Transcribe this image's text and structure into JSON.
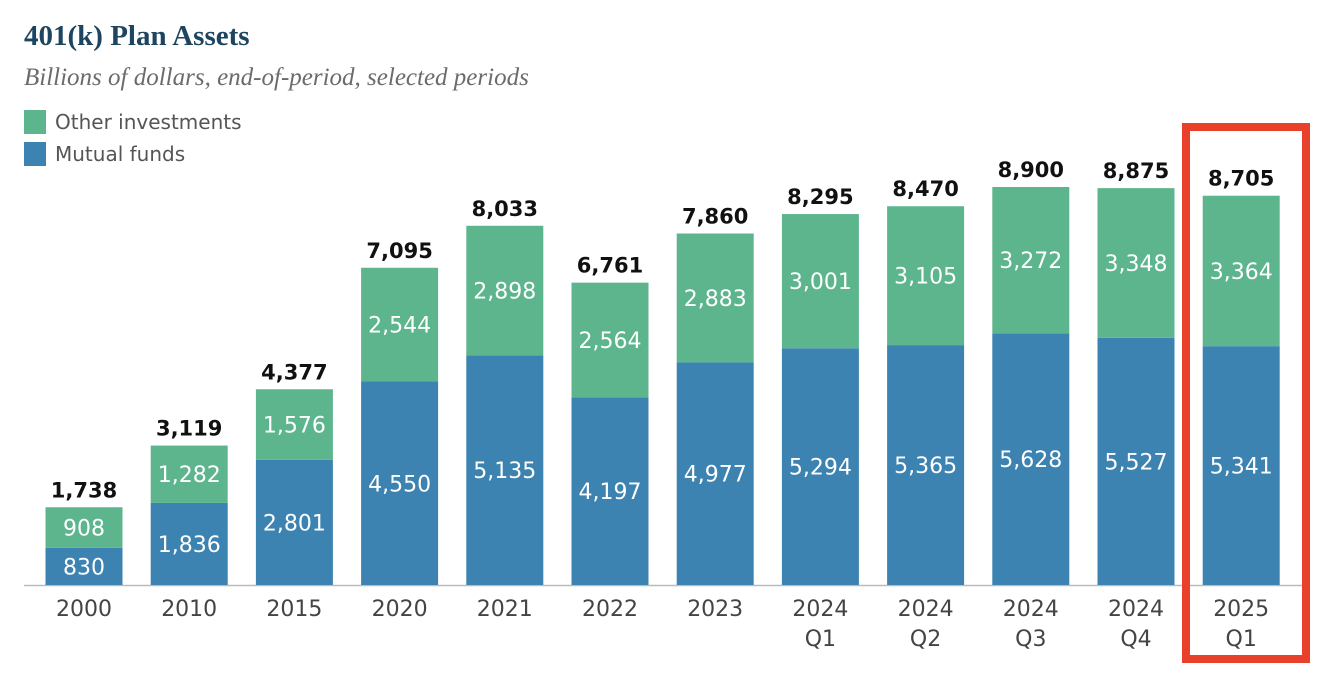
{
  "chart_data": {
    "type": "bar",
    "stacked": true,
    "title": "401(k) Plan Assets",
    "subtitle": "Billions of dollars, end-of-period, selected periods",
    "xlabel": "",
    "ylabel": "",
    "ylim": [
      0,
      9000
    ],
    "grid": false,
    "legend_position": "top-left",
    "categories": [
      "2000",
      "2010",
      "2015",
      "2020",
      "2021",
      "2022",
      "2023",
      "2024 Q1",
      "2024 Q2",
      "2024 Q3",
      "2024 Q4",
      "2025 Q1"
    ],
    "series": [
      {
        "name": "Mutual funds",
        "color": "#3c83b1",
        "values": [
          830,
          1836,
          2801,
          4550,
          5135,
          4197,
          4977,
          5294,
          5365,
          5628,
          5527,
          5341
        ]
      },
      {
        "name": "Other investments",
        "color": "#5db58d",
        "values": [
          908,
          1282,
          1576,
          2544,
          2898,
          2564,
          2883,
          3001,
          3105,
          3272,
          3348,
          3364
        ]
      }
    ],
    "totals": [
      1738,
      3119,
      4377,
      7095,
      8033,
      6761,
      7860,
      8295,
      8470,
      8900,
      8875,
      8705
    ],
    "highlighted_category": "2025 Q1",
    "highlight_color": "#e8402a"
  }
}
